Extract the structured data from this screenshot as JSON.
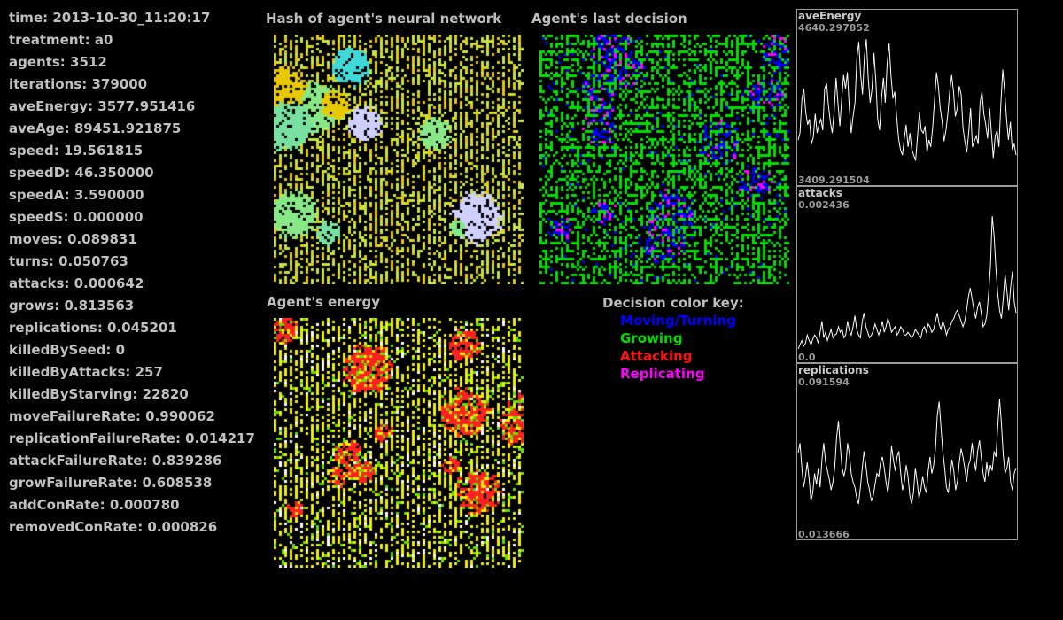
{
  "stats": [
    "time: 2013-10-30_11:20:17",
    "treatment: a0",
    "agents: 3512",
    "iterations: 379000",
    "aveEnergy: 3577.951416",
    "aveAge: 89451.921875",
    "speed: 19.561815",
    "speedD: 46.350000",
    "speedA: 3.590000",
    "speedS: 0.000000",
    "moves: 0.089831",
    "turns: 0.050763",
    "attacks: 0.000642",
    "grows: 0.813563",
    "replications: 0.045201",
    "killedBySeed: 0",
    "killedByAttacks: 257",
    "killedByStarving: 22820",
    "moveFailureRate: 0.990062",
    "replicationFailureRate: 0.014217",
    "attackFailureRate: 0.839286",
    "growFailureRate: 0.608538",
    "addConRate: 0.000780",
    "removedConRate: 0.000826"
  ],
  "panels": {
    "hash_title": "Hash of agent's neural network",
    "decision_title": "Agent's last decision",
    "energy_title": "Agent's energy"
  },
  "key": {
    "title": "Decision color key:",
    "items": [
      {
        "label": "Moving/Turning",
        "color": "#0000ff"
      },
      {
        "label": "Growing",
        "color": "#00e000"
      },
      {
        "label": "Attacking",
        "color": "#ff1010"
      },
      {
        "label": "Replicating",
        "color": "#ff00ff"
      }
    ]
  },
  "colors": {
    "background": "#000000",
    "text": "#bdbdbd",
    "plot_line": "#ffffff",
    "plot_border": "#9a9a9a",
    "hash_palette": [
      "#c8e43c",
      "#e8c800",
      "#88e888",
      "#40d8d8",
      "#ffffff",
      "#78e0a0",
      "#d0d0ff"
    ],
    "decision_palette": [
      "#00e000",
      "#0000ff",
      "#ff00ff"
    ],
    "energy_palette": [
      "#f0f000",
      "#ff2020",
      "#60e000",
      "#ffffff"
    ]
  },
  "plots": [
    {
      "title": "aveEnergy",
      "max": "4640.297852",
      "min": "3409.291504",
      "series": [
        0.25,
        0.3,
        0.55,
        0.62,
        0.45,
        0.36,
        0.4,
        0.22,
        0.27,
        0.44,
        0.3,
        0.36,
        0.4,
        0.32,
        0.62,
        0.66,
        0.5,
        0.38,
        0.3,
        0.45,
        0.7,
        0.52,
        0.35,
        0.55,
        0.72,
        0.62,
        0.74,
        0.48,
        0.3,
        0.42,
        0.52,
        0.84,
        0.96,
        0.72,
        0.58,
        0.86,
        0.98,
        0.7,
        0.52,
        0.62,
        0.88,
        0.68,
        0.4,
        0.32,
        0.55,
        0.7,
        0.52,
        0.8,
        0.95,
        0.72,
        0.55,
        0.6,
        0.42,
        0.26,
        0.18,
        0.14,
        0.26,
        0.36,
        0.2,
        0.3,
        0.18,
        0.14,
        0.1,
        0.28,
        0.45,
        0.32,
        0.3,
        0.35,
        0.16,
        0.25,
        0.2,
        0.34,
        0.54,
        0.74,
        0.64,
        0.48,
        0.38,
        0.24,
        0.32,
        0.44,
        0.6,
        0.72,
        0.6,
        0.42,
        0.48,
        0.64,
        0.58,
        0.34,
        0.24,
        0.16,
        0.3,
        0.48,
        0.2,
        0.24,
        0.28,
        0.22,
        0.52,
        0.6,
        0.44,
        0.36,
        0.26,
        0.48,
        0.3,
        0.12,
        0.28,
        0.32,
        0.2,
        0.52,
        0.76,
        0.6,
        0.4,
        0.25,
        0.38,
        0.18,
        0.22,
        0.14
      ]
    },
    {
      "title": "attacks",
      "max": "0.002436",
      "min": "0.0",
      "series": [
        0.02,
        0.05,
        0.08,
        0.04,
        0.06,
        0.12,
        0.08,
        0.05,
        0.09,
        0.12,
        0.1,
        0.06,
        0.14,
        0.22,
        0.1,
        0.14,
        0.08,
        0.12,
        0.16,
        0.1,
        0.12,
        0.13,
        0.18,
        0.14,
        0.16,
        0.1,
        0.12,
        0.22,
        0.15,
        0.12,
        0.18,
        0.26,
        0.16,
        0.12,
        0.1,
        0.22,
        0.28,
        0.18,
        0.14,
        0.1,
        0.12,
        0.15,
        0.2,
        0.16,
        0.12,
        0.16,
        0.22,
        0.14,
        0.18,
        0.24,
        0.2,
        0.14,
        0.16,
        0.18,
        0.12,
        0.14,
        0.18,
        0.16,
        0.12,
        0.12,
        0.14,
        0.12,
        0.1,
        0.12,
        0.16,
        0.14,
        0.12,
        0.1,
        0.16,
        0.18,
        0.14,
        0.2,
        0.18,
        0.14,
        0.16,
        0.22,
        0.28,
        0.2,
        0.16,
        0.22,
        0.18,
        0.12,
        0.16,
        0.18,
        0.22,
        0.24,
        0.28,
        0.3,
        0.26,
        0.22,
        0.18,
        0.22,
        0.3,
        0.4,
        0.46,
        0.38,
        0.3,
        0.24,
        0.32,
        0.36,
        0.28,
        0.18,
        0.2,
        0.26,
        0.42,
        0.62,
        0.98,
        0.84,
        0.6,
        0.42,
        0.3,
        0.24,
        0.38,
        0.56,
        0.44,
        0.3,
        0.46,
        0.58,
        0.36,
        0.28
      ]
    },
    {
      "title": "replications",
      "max": "0.091594",
      "min": "0.013666",
      "series": [
        0.55,
        0.62,
        0.45,
        0.3,
        0.38,
        0.48,
        0.36,
        0.2,
        0.26,
        0.4,
        0.32,
        0.44,
        0.3,
        0.5,
        0.62,
        0.48,
        0.42,
        0.36,
        0.28,
        0.34,
        0.44,
        0.66,
        0.78,
        0.6,
        0.44,
        0.38,
        0.44,
        0.62,
        0.54,
        0.4,
        0.34,
        0.3,
        0.22,
        0.18,
        0.3,
        0.44,
        0.56,
        0.46,
        0.34,
        0.28,
        0.2,
        0.24,
        0.32,
        0.4,
        0.38,
        0.48,
        0.52,
        0.44,
        0.34,
        0.26,
        0.38,
        0.6,
        0.5,
        0.42,
        0.52,
        0.56,
        0.4,
        0.28,
        0.34,
        0.46,
        0.38,
        0.24,
        0.18,
        0.26,
        0.44,
        0.34,
        0.22,
        0.28,
        0.38,
        0.3,
        0.26,
        0.42,
        0.52,
        0.4,
        0.46,
        0.58,
        0.82,
        0.92,
        0.74,
        0.56,
        0.44,
        0.3,
        0.26,
        0.38,
        0.5,
        0.42,
        0.28,
        0.34,
        0.48,
        0.58,
        0.52,
        0.44,
        0.34,
        0.46,
        0.5,
        0.62,
        0.5,
        0.42,
        0.56,
        0.64,
        0.52,
        0.4,
        0.34,
        0.48,
        0.38,
        0.46,
        0.42,
        0.56,
        0.52,
        0.74,
        0.94,
        0.76,
        0.54,
        0.4,
        0.44,
        0.52,
        0.34,
        0.28,
        0.4,
        0.44
      ]
    }
  ]
}
